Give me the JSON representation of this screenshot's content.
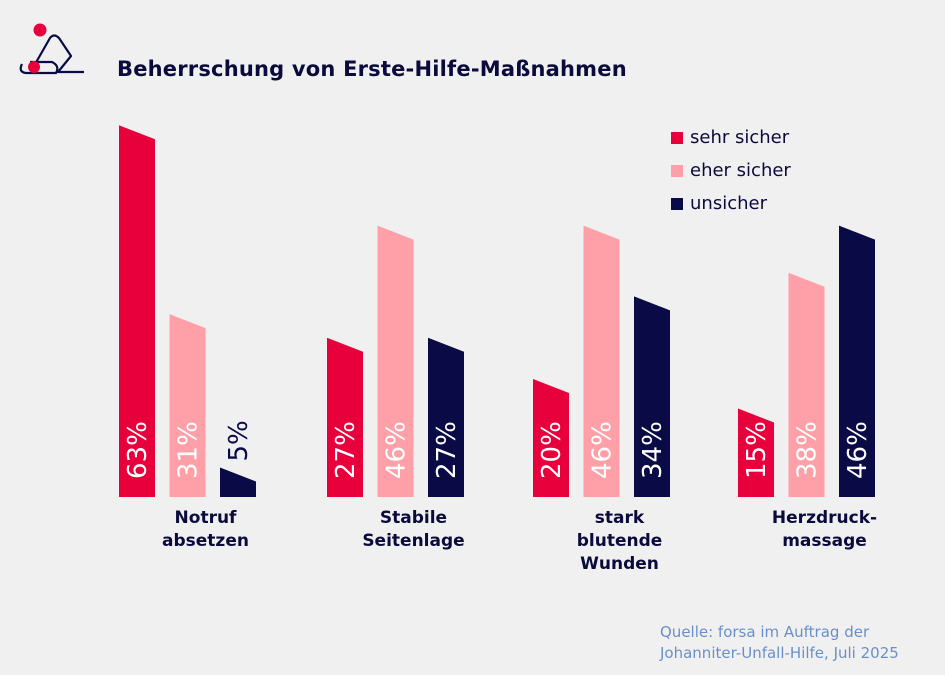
{
  "title": "Beherrschung von Erste-Hilfe-Maßnahmen",
  "source": [
    "Quelle: forsa im Auftrag der",
    "Johanniter-Unfall-Hilfe, Juli 2025"
  ],
  "colors": {
    "sehr_sicher": "#e8003c",
    "eher_sicher": "#ffa0a8",
    "unsicher": "#0a0a46",
    "background": "#f0f0f0"
  },
  "chart_data": {
    "type": "bar",
    "title": "Beherrschung von Erste-Hilfe-Maßnahmen",
    "categories": [
      [
        "Notruf",
        "absetzen"
      ],
      [
        "Stabile",
        "Seitenlage"
      ],
      [
        "stark",
        "blutende",
        "Wunden"
      ],
      [
        "Herzdruck-",
        "massage"
      ]
    ],
    "series": [
      {
        "name": "sehr sicher",
        "color": "#e8003c",
        "values": [
          63,
          27,
          20,
          15
        ],
        "labels": [
          "63%",
          "27%",
          "20%",
          "15%"
        ]
      },
      {
        "name": "eher sicher",
        "color": "#ffa0a8",
        "values": [
          31,
          46,
          46,
          38
        ],
        "labels": [
          "31%",
          "46%",
          "46%",
          "38%"
        ]
      },
      {
        "name": "unsicher",
        "color": "#0a0a46",
        "values": [
          5,
          27,
          34,
          46
        ],
        "labels": [
          "5%",
          "27%",
          "34%",
          "46%"
        ]
      }
    ],
    "unit": "%",
    "legend_position": "top-right",
    "grid": false
  }
}
